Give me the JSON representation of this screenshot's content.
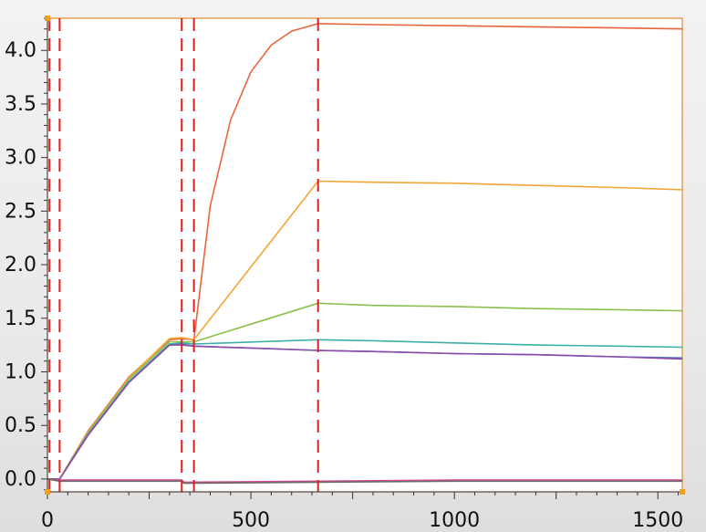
{
  "chart_data": {
    "type": "line",
    "title": "",
    "xlabel": "",
    "ylabel": "",
    "xlim": [
      0,
      1560
    ],
    "ylim": [
      -0.12,
      4.3
    ],
    "x_ticks": [
      0,
      500,
      1000,
      1500
    ],
    "x_tick_labels": [
      "0",
      "500",
      "1000",
      "1500"
    ],
    "y_ticks": [
      0.0,
      0.5,
      1.0,
      1.5,
      2.0,
      2.5,
      3.0,
      3.5,
      4.0
    ],
    "y_tick_labels": [
      "0.0",
      "0.5",
      "1.0",
      "1.5",
      "2.0",
      "2.5",
      "3.0",
      "3.5",
      "4.0"
    ],
    "grid": false,
    "vertical_markers": {
      "color": "#e02020",
      "style": "dashed",
      "x": [
        5,
        30,
        330,
        360,
        665
      ]
    },
    "series": [
      {
        "color": "#e8643c",
        "x": [
          0,
          30,
          100,
          200,
          300,
          330,
          360,
          400,
          450,
          500,
          550,
          600,
          665,
          800,
          1000,
          1200,
          1400,
          1560
        ],
        "y": [
          0.0,
          0.0,
          0.45,
          0.95,
          1.3,
          1.31,
          1.3,
          2.55,
          3.35,
          3.8,
          4.05,
          4.18,
          4.25,
          4.24,
          4.23,
          4.22,
          4.21,
          4.2
        ]
      },
      {
        "color": "#f4a535",
        "x": [
          0,
          30,
          100,
          200,
          300,
          330,
          360,
          665,
          800,
          1000,
          1200,
          1400,
          1560
        ],
        "y": [
          0.0,
          0.0,
          0.44,
          0.94,
          1.31,
          1.32,
          1.3,
          2.78,
          2.77,
          2.76,
          2.74,
          2.72,
          2.7
        ]
      },
      {
        "color": "#8cc04c",
        "x": [
          0,
          30,
          100,
          200,
          300,
          330,
          360,
          665,
          800,
          1000,
          1200,
          1400,
          1560
        ],
        "y": [
          0.0,
          0.0,
          0.43,
          0.93,
          1.28,
          1.28,
          1.28,
          1.64,
          1.62,
          1.61,
          1.59,
          1.58,
          1.57
        ]
      },
      {
        "color": "#3bb0a8",
        "x": [
          0,
          30,
          100,
          200,
          300,
          330,
          360,
          665,
          800,
          1000,
          1200,
          1400,
          1560
        ],
        "y": [
          0.0,
          0.0,
          0.42,
          0.91,
          1.26,
          1.27,
          1.26,
          1.3,
          1.29,
          1.27,
          1.25,
          1.24,
          1.23
        ]
      },
      {
        "color": "#4a78c8",
        "x": [
          0,
          30,
          100,
          200,
          300,
          330,
          360,
          665,
          800,
          1000,
          1200,
          1400,
          1560
        ],
        "y": [
          0.0,
          0.0,
          0.41,
          0.9,
          1.25,
          1.26,
          1.24,
          1.2,
          1.19,
          1.17,
          1.16,
          1.14,
          1.13
        ]
      },
      {
        "color": "#8e4ca8",
        "x": [
          0,
          30,
          100,
          200,
          300,
          330,
          360,
          665,
          800,
          1000,
          1200,
          1400,
          1560
        ],
        "y": [
          0.0,
          0.0,
          0.41,
          0.9,
          1.25,
          1.25,
          1.24,
          1.2,
          1.19,
          1.17,
          1.16,
          1.14,
          1.12
        ]
      },
      {
        "color": "#d84890",
        "x": [
          0,
          30,
          330,
          335,
          665,
          1000,
          1560
        ],
        "y": [
          0.0,
          -0.01,
          -0.01,
          -0.03,
          -0.02,
          -0.01,
          -0.01
        ]
      },
      {
        "color": "#6a6a6a",
        "x": [
          0,
          30,
          330,
          335,
          665,
          1000,
          1560
        ],
        "y": [
          0.0,
          -0.02,
          -0.02,
          -0.04,
          -0.03,
          -0.02,
          -0.02
        ]
      }
    ]
  }
}
